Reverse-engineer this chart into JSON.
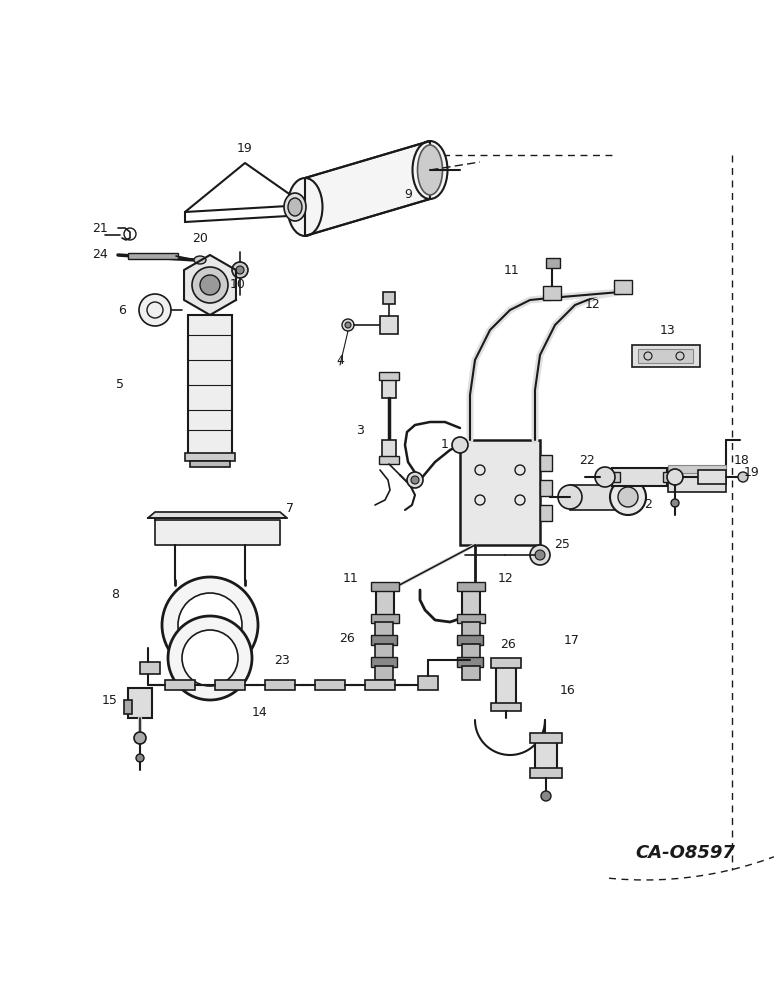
{
  "bg_color": "#ffffff",
  "lc": "#1a1a1a",
  "tc": "#1a1a1a",
  "watermark": "CA-O8597",
  "figsize": [
    7.84,
    10.0
  ],
  "dpi": 100
}
